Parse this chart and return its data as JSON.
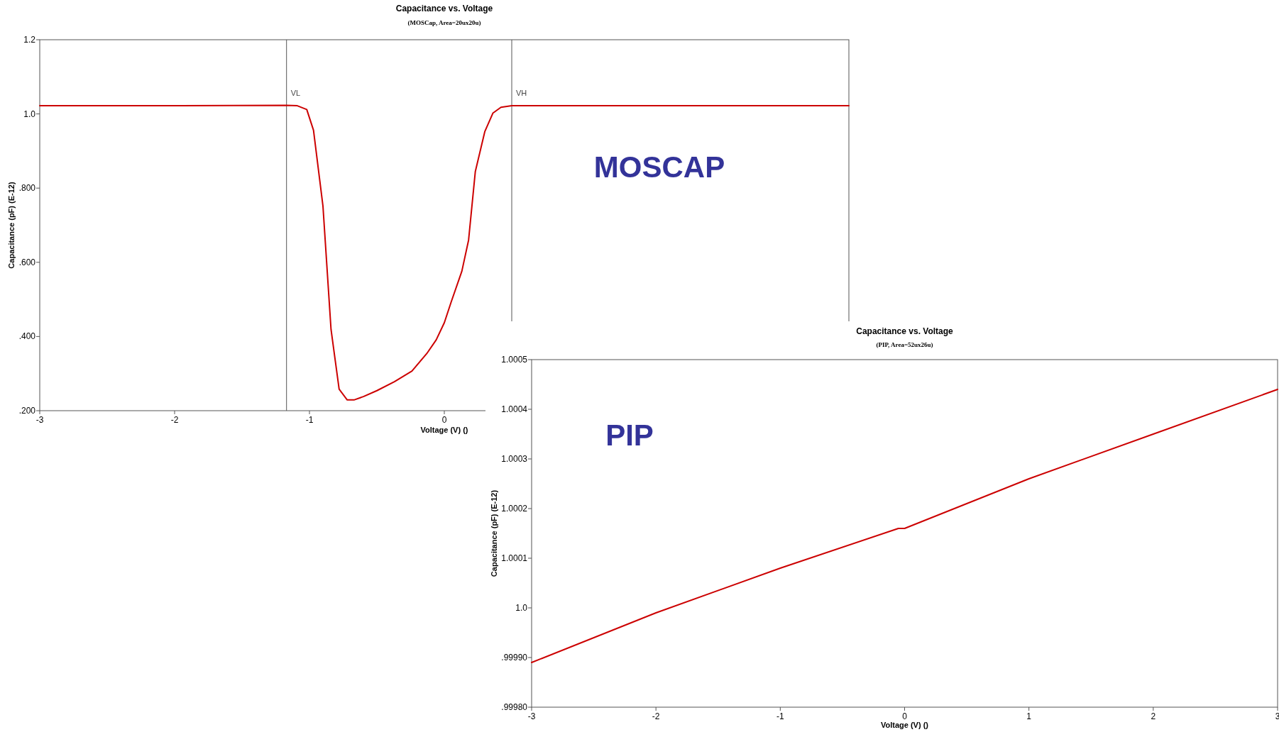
{
  "chart_data": [
    {
      "type": "line",
      "title": "Capacitance vs. Voltage",
      "subtitle": "(MOSCap, Area=20ux20u)",
      "xlabel": "Voltage (V) ()",
      "ylabel": "Capacitance (pF) (E-12)",
      "annotations": [
        "MOSCAP"
      ],
      "xlim": [
        -3,
        3
      ],
      "ylim": [
        0.2,
        1.2
      ],
      "xticks": [
        -3,
        -2,
        -1,
        {
          "value": 0,
          "label": "0"
        }
      ],
      "yticks": [
        {
          "value": 0.2,
          "label": ".200"
        },
        {
          "value": 0.4,
          "label": ".400"
        },
        {
          "value": 0.6,
          "label": ".600"
        },
        {
          "value": 0.8,
          "label": ".800"
        },
        {
          "value": 1,
          "label": "1.0"
        },
        1.2
      ],
      "ref_lines": [
        {
          "axis": "x",
          "value": -1.17,
          "label": "VL",
          "color": "#555555"
        },
        {
          "axis": "x",
          "value": 0.5,
          "label": "VH",
          "color": "#555555"
        }
      ],
      "x": [
        -3,
        -2,
        -1.17,
        -1.09,
        -1.02,
        -0.97,
        -0.9,
        -0.84,
        -0.78,
        -0.72,
        -0.67,
        -0.6,
        -0.5,
        -0.37,
        -0.24,
        -0.13,
        -0.06,
        0,
        0.05,
        0.13,
        0.18,
        0.23,
        0.3,
        0.36,
        0.42,
        0.5,
        1,
        2,
        3
      ],
      "series": [
        {
          "color": "#cc0000",
          "values": [
            1.022,
            1.022,
            1.023,
            1.022,
            1.012,
            0.956,
            0.752,
            0.419,
            0.258,
            0.229,
            0.229,
            0.238,
            0.254,
            0.278,
            0.307,
            0.354,
            0.391,
            0.437,
            0.492,
            0.576,
            0.66,
            0.845,
            0.952,
            1.002,
            1.018,
            1.022,
            1.022,
            1.022,
            1.022
          ]
        }
      ]
    },
    {
      "type": "line",
      "title": "Capacitance vs. Voltage",
      "subtitle": "(PIP, Area=52ux26u)",
      "xlabel": "Voltage (V) ()",
      "ylabel": "Capacitance (pF) (E-12)",
      "annotations": [
        "PIP"
      ],
      "xlim": [
        -3,
        3
      ],
      "ylim": [
        0.9998,
        1.0005
      ],
      "xticks": [
        -3,
        -2,
        -1,
        0,
        1,
        2,
        3
      ],
      "yticks": [
        {
          "value": 0.9998,
          "label": ".99980"
        },
        {
          "value": 0.9999,
          "label": ".99990"
        },
        {
          "value": 1,
          "label": "1.0"
        },
        1.0001,
        1.0002,
        1.0003,
        1.0004,
        1.0005
      ],
      "x": [
        -3,
        -2,
        -1,
        -0.05,
        0,
        1,
        2,
        3
      ],
      "series": [
        {
          "color": "#cc0000",
          "values": [
            0.99989,
            0.99999,
            1.00008,
            1.00016,
            1.00016,
            1.00026,
            1.00035,
            1.00044
          ]
        }
      ]
    }
  ]
}
